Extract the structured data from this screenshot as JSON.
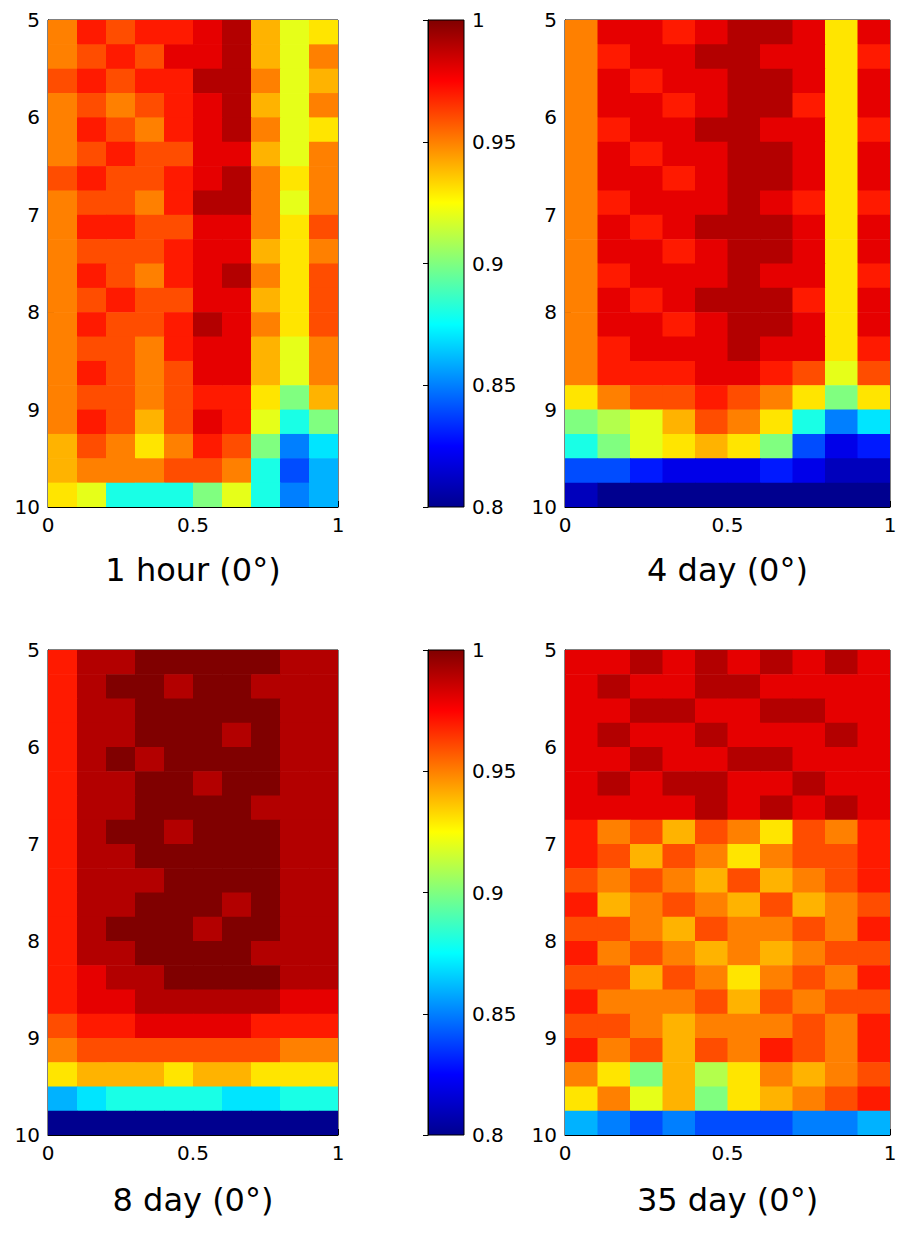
{
  "chart_data": [
    {
      "type": "heatmap",
      "title": "1 hour (0°)",
      "x": [
        0.05,
        0.15,
        0.25,
        0.35,
        0.45,
        0.55,
        0.65,
        0.75,
        0.85,
        0.95
      ],
      "y": [
        5.125,
        5.375,
        5.625,
        5.875,
        6.125,
        6.375,
        6.625,
        6.875,
        7.125,
        7.375,
        7.625,
        7.875,
        8.125,
        8.375,
        8.625,
        8.875,
        9.125,
        9.375,
        9.625,
        9.875
      ],
      "values": [
        [
          0.95,
          0.97,
          0.96,
          0.97,
          0.97,
          0.98,
          0.99,
          0.94,
          0.92,
          0.93
        ],
        [
          0.95,
          0.96,
          0.97,
          0.96,
          0.98,
          0.98,
          0.99,
          0.94,
          0.92,
          0.95
        ],
        [
          0.96,
          0.97,
          0.96,
          0.97,
          0.97,
          0.99,
          0.99,
          0.95,
          0.92,
          0.94
        ],
        [
          0.95,
          0.96,
          0.95,
          0.96,
          0.97,
          0.98,
          0.99,
          0.94,
          0.92,
          0.95
        ],
        [
          0.95,
          0.97,
          0.96,
          0.95,
          0.97,
          0.98,
          0.99,
          0.95,
          0.92,
          0.93
        ],
        [
          0.95,
          0.96,
          0.97,
          0.96,
          0.96,
          0.98,
          0.98,
          0.94,
          0.92,
          0.95
        ],
        [
          0.96,
          0.97,
          0.96,
          0.96,
          0.97,
          0.98,
          0.99,
          0.95,
          0.93,
          0.95
        ],
        [
          0.95,
          0.96,
          0.96,
          0.95,
          0.97,
          0.99,
          0.99,
          0.95,
          0.92,
          0.95
        ],
        [
          0.95,
          0.97,
          0.97,
          0.96,
          0.96,
          0.98,
          0.98,
          0.95,
          0.93,
          0.96
        ],
        [
          0.95,
          0.96,
          0.96,
          0.96,
          0.97,
          0.98,
          0.98,
          0.94,
          0.93,
          0.95
        ],
        [
          0.95,
          0.97,
          0.96,
          0.95,
          0.97,
          0.98,
          0.99,
          0.95,
          0.93,
          0.96
        ],
        [
          0.95,
          0.96,
          0.97,
          0.96,
          0.96,
          0.98,
          0.98,
          0.94,
          0.93,
          0.96
        ],
        [
          0.95,
          0.97,
          0.96,
          0.96,
          0.97,
          0.99,
          0.98,
          0.95,
          0.93,
          0.96
        ],
        [
          0.95,
          0.96,
          0.96,
          0.95,
          0.97,
          0.98,
          0.98,
          0.94,
          0.92,
          0.95
        ],
        [
          0.95,
          0.97,
          0.96,
          0.95,
          0.96,
          0.98,
          0.98,
          0.94,
          0.92,
          0.95
        ],
        [
          0.95,
          0.96,
          0.96,
          0.95,
          0.96,
          0.97,
          0.97,
          0.93,
          0.9,
          0.94
        ],
        [
          0.95,
          0.97,
          0.96,
          0.94,
          0.96,
          0.98,
          0.97,
          0.92,
          0.88,
          0.9
        ],
        [
          0.94,
          0.96,
          0.95,
          0.93,
          0.95,
          0.97,
          0.96,
          0.9,
          0.85,
          0.87
        ],
        [
          0.94,
          0.95,
          0.95,
          0.95,
          0.96,
          0.96,
          0.95,
          0.88,
          0.84,
          0.86
        ],
        [
          0.93,
          0.92,
          0.88,
          0.88,
          0.88,
          0.9,
          0.92,
          0.88,
          0.85,
          0.86
        ]
      ],
      "xlim": [
        0,
        1
      ],
      "xticks": [
        0,
        0.5,
        1
      ],
      "ylim": [
        5,
        10
      ],
      "yticks": [
        5,
        6,
        7,
        8,
        9,
        10
      ],
      "colorbar_range": [
        0.8,
        1
      ],
      "colorbar_ticks": [
        0.8,
        0.85,
        0.9,
        0.95,
        1
      ]
    },
    {
      "type": "heatmap",
      "title": "4 day (0°)",
      "x": [
        0.05,
        0.15,
        0.25,
        0.35,
        0.45,
        0.55,
        0.65,
        0.75,
        0.85,
        0.95
      ],
      "y": [
        5.125,
        5.375,
        5.625,
        5.875,
        6.125,
        6.375,
        6.625,
        6.875,
        7.125,
        7.375,
        7.625,
        7.875,
        8.125,
        8.375,
        8.625,
        8.875,
        9.125,
        9.375,
        9.625,
        9.875
      ],
      "values": [
        [
          0.95,
          0.98,
          0.98,
          0.97,
          0.98,
          0.99,
          0.99,
          0.98,
          0.93,
          0.98
        ],
        [
          0.95,
          0.97,
          0.98,
          0.98,
          0.99,
          0.99,
          0.98,
          0.98,
          0.93,
          0.97
        ],
        [
          0.95,
          0.98,
          0.97,
          0.98,
          0.98,
          0.99,
          0.99,
          0.98,
          0.93,
          0.98
        ],
        [
          0.95,
          0.98,
          0.98,
          0.97,
          0.98,
          0.99,
          0.99,
          0.97,
          0.93,
          0.98
        ],
        [
          0.95,
          0.97,
          0.98,
          0.98,
          0.99,
          0.99,
          0.98,
          0.98,
          0.93,
          0.97
        ],
        [
          0.95,
          0.98,
          0.97,
          0.98,
          0.98,
          0.99,
          0.99,
          0.98,
          0.93,
          0.98
        ],
        [
          0.95,
          0.98,
          0.98,
          0.97,
          0.98,
          0.99,
          0.99,
          0.98,
          0.93,
          0.98
        ],
        [
          0.95,
          0.97,
          0.98,
          0.98,
          0.98,
          0.99,
          0.98,
          0.97,
          0.93,
          0.97
        ],
        [
          0.95,
          0.98,
          0.97,
          0.98,
          0.99,
          0.99,
          0.99,
          0.98,
          0.93,
          0.98
        ],
        [
          0.95,
          0.98,
          0.98,
          0.97,
          0.98,
          0.99,
          0.99,
          0.98,
          0.93,
          0.98
        ],
        [
          0.95,
          0.97,
          0.98,
          0.98,
          0.98,
          0.99,
          0.98,
          0.98,
          0.93,
          0.97
        ],
        [
          0.95,
          0.98,
          0.97,
          0.98,
          0.99,
          0.99,
          0.99,
          0.97,
          0.93,
          0.98
        ],
        [
          0.95,
          0.98,
          0.98,
          0.97,
          0.98,
          0.99,
          0.99,
          0.98,
          0.93,
          0.98
        ],
        [
          0.95,
          0.97,
          0.98,
          0.98,
          0.98,
          0.99,
          0.98,
          0.98,
          0.93,
          0.97
        ],
        [
          0.95,
          0.97,
          0.97,
          0.97,
          0.98,
          0.98,
          0.97,
          0.96,
          0.92,
          0.96
        ],
        [
          0.93,
          0.95,
          0.96,
          0.96,
          0.97,
          0.96,
          0.95,
          0.93,
          0.9,
          0.93
        ],
        [
          0.9,
          0.91,
          0.92,
          0.94,
          0.96,
          0.95,
          0.93,
          0.88,
          0.85,
          0.87
        ],
        [
          0.88,
          0.9,
          0.92,
          0.93,
          0.94,
          0.93,
          0.9,
          0.84,
          0.82,
          0.83
        ],
        [
          0.84,
          0.84,
          0.83,
          0.82,
          0.82,
          0.82,
          0.83,
          0.82,
          0.81,
          0.81
        ],
        [
          0.81,
          0.8,
          0.8,
          0.8,
          0.8,
          0.8,
          0.8,
          0.8,
          0.8,
          0.8
        ]
      ],
      "xlim": [
        0,
        1
      ],
      "xticks": [
        0,
        0.5,
        1
      ],
      "ylim": [
        5,
        10
      ],
      "yticks": [
        5,
        6,
        7,
        8,
        9,
        10
      ],
      "colorbar_range": [
        0.8,
        1
      ]
    },
    {
      "type": "heatmap",
      "title": "8 day (0°)",
      "x": [
        0.05,
        0.15,
        0.25,
        0.35,
        0.45,
        0.55,
        0.65,
        0.75,
        0.85,
        0.95
      ],
      "y": [
        5.125,
        5.375,
        5.625,
        5.875,
        6.125,
        6.375,
        6.625,
        6.875,
        7.125,
        7.375,
        7.625,
        7.875,
        8.125,
        8.375,
        8.625,
        8.875,
        9.125,
        9.375,
        9.625,
        9.875
      ],
      "values": [
        [
          0.97,
          0.99,
          0.99,
          1,
          1,
          1,
          1,
          1,
          0.99,
          0.99
        ],
        [
          0.97,
          0.99,
          1,
          1,
          0.99,
          1,
          1,
          0.99,
          0.99,
          0.99
        ],
        [
          0.97,
          0.99,
          0.99,
          1,
          1,
          1,
          1,
          1,
          0.99,
          0.99
        ],
        [
          0.97,
          0.99,
          0.99,
          1,
          1,
          1,
          0.99,
          1,
          0.99,
          0.99
        ],
        [
          0.97,
          0.99,
          1,
          0.99,
          1,
          1,
          1,
          1,
          0.99,
          0.99
        ],
        [
          0.97,
          0.99,
          0.99,
          1,
          1,
          0.99,
          1,
          1,
          0.99,
          0.99
        ],
        [
          0.97,
          0.99,
          0.99,
          1,
          1,
          1,
          1,
          0.99,
          0.99,
          0.99
        ],
        [
          0.97,
          0.99,
          1,
          1,
          0.99,
          1,
          1,
          1,
          0.99,
          0.99
        ],
        [
          0.97,
          0.99,
          0.99,
          1,
          1,
          1,
          1,
          1,
          0.99,
          0.99
        ],
        [
          0.97,
          0.99,
          0.99,
          0.99,
          1,
          1,
          1,
          1,
          0.99,
          0.99
        ],
        [
          0.97,
          0.99,
          0.99,
          1,
          1,
          1,
          0.99,
          1,
          0.99,
          0.99
        ],
        [
          0.97,
          0.99,
          1,
          1,
          1,
          0.99,
          1,
          1,
          0.99,
          0.99
        ],
        [
          0.97,
          0.99,
          0.99,
          1,
          1,
          1,
          1,
          0.99,
          0.99,
          0.99
        ],
        [
          0.97,
          0.98,
          0.99,
          0.99,
          1,
          1,
          1,
          1,
          0.99,
          0.99
        ],
        [
          0.97,
          0.98,
          0.98,
          0.99,
          0.99,
          0.99,
          0.99,
          0.99,
          0.98,
          0.98
        ],
        [
          0.96,
          0.97,
          0.97,
          0.98,
          0.98,
          0.98,
          0.98,
          0.97,
          0.97,
          0.97
        ],
        [
          0.95,
          0.96,
          0.96,
          0.96,
          0.96,
          0.96,
          0.96,
          0.96,
          0.95,
          0.95
        ],
        [
          0.93,
          0.94,
          0.94,
          0.94,
          0.93,
          0.94,
          0.94,
          0.93,
          0.93,
          0.93
        ],
        [
          0.86,
          0.87,
          0.88,
          0.88,
          0.88,
          0.88,
          0.87,
          0.87,
          0.88,
          0.88
        ],
        [
          0.8,
          0.8,
          0.8,
          0.8,
          0.8,
          0.8,
          0.8,
          0.8,
          0.8,
          0.8
        ]
      ],
      "xlim": [
        0,
        1
      ],
      "xticks": [
        0,
        0.5,
        1
      ],
      "ylim": [
        5,
        10
      ],
      "yticks": [
        5,
        6,
        7,
        8,
        9,
        10
      ],
      "colorbar_range": [
        0.8,
        1
      ],
      "colorbar_ticks": [
        0.8,
        0.85,
        0.9,
        0.95,
        1
      ]
    },
    {
      "type": "heatmap",
      "title": "35 day (0°)",
      "x": [
        0.05,
        0.15,
        0.25,
        0.35,
        0.45,
        0.55,
        0.65,
        0.75,
        0.85,
        0.95
      ],
      "y": [
        5.125,
        5.375,
        5.625,
        5.875,
        6.125,
        6.375,
        6.625,
        6.875,
        7.125,
        7.375,
        7.625,
        7.875,
        8.125,
        8.375,
        8.625,
        8.875,
        9.125,
        9.375,
        9.625,
        9.875
      ],
      "values": [
        [
          0.98,
          0.98,
          0.99,
          0.98,
          0.99,
          0.98,
          0.99,
          0.98,
          0.99,
          0.98
        ],
        [
          0.98,
          0.99,
          0.98,
          0.98,
          0.99,
          0.99,
          0.98,
          0.98,
          0.98,
          0.98
        ],
        [
          0.98,
          0.98,
          0.99,
          0.99,
          0.98,
          0.98,
          0.99,
          0.99,
          0.98,
          0.98
        ],
        [
          0.98,
          0.99,
          0.98,
          0.98,
          0.99,
          0.98,
          0.98,
          0.98,
          0.99,
          0.98
        ],
        [
          0.98,
          0.98,
          0.99,
          0.98,
          0.98,
          0.99,
          0.99,
          0.98,
          0.98,
          0.98
        ],
        [
          0.98,
          0.99,
          0.98,
          0.99,
          0.99,
          0.98,
          0.98,
          0.99,
          0.98,
          0.98
        ],
        [
          0.98,
          0.98,
          0.98,
          0.98,
          0.99,
          0.98,
          0.99,
          0.98,
          0.99,
          0.98
        ],
        [
          0.97,
          0.95,
          0.96,
          0.94,
          0.96,
          0.95,
          0.93,
          0.96,
          0.95,
          0.97
        ],
        [
          0.97,
          0.96,
          0.94,
          0.96,
          0.95,
          0.93,
          0.95,
          0.96,
          0.96,
          0.97
        ],
        [
          0.96,
          0.95,
          0.96,
          0.95,
          0.94,
          0.96,
          0.94,
          0.95,
          0.96,
          0.97
        ],
        [
          0.97,
          0.94,
          0.95,
          0.96,
          0.95,
          0.94,
          0.96,
          0.94,
          0.95,
          0.96
        ],
        [
          0.96,
          0.96,
          0.95,
          0.94,
          0.96,
          0.95,
          0.95,
          0.96,
          0.95,
          0.97
        ],
        [
          0.97,
          0.95,
          0.96,
          0.95,
          0.94,
          0.95,
          0.94,
          0.95,
          0.96,
          0.96
        ],
        [
          0.96,
          0.96,
          0.94,
          0.96,
          0.95,
          0.93,
          0.95,
          0.96,
          0.95,
          0.97
        ],
        [
          0.97,
          0.95,
          0.95,
          0.95,
          0.96,
          0.94,
          0.96,
          0.95,
          0.96,
          0.96
        ],
        [
          0.96,
          0.96,
          0.95,
          0.94,
          0.95,
          0.95,
          0.95,
          0.96,
          0.95,
          0.97
        ],
        [
          0.97,
          0.95,
          0.96,
          0.94,
          0.96,
          0.95,
          0.97,
          0.96,
          0.95,
          0.97
        ],
        [
          0.95,
          0.93,
          0.9,
          0.94,
          0.91,
          0.93,
          0.95,
          0.94,
          0.95,
          0.96
        ],
        [
          0.93,
          0.95,
          0.92,
          0.94,
          0.9,
          0.93,
          0.94,
          0.95,
          0.96,
          0.97
        ],
        [
          0.86,
          0.85,
          0.84,
          0.85,
          0.84,
          0.84,
          0.84,
          0.85,
          0.85,
          0.86
        ]
      ],
      "xlim": [
        0,
        1
      ],
      "xticks": [
        0,
        0.5,
        1
      ],
      "ylim": [
        5,
        10
      ],
      "yticks": [
        5,
        6,
        7,
        8,
        9,
        10
      ],
      "colorbar_range": [
        0.8,
        1
      ]
    }
  ]
}
